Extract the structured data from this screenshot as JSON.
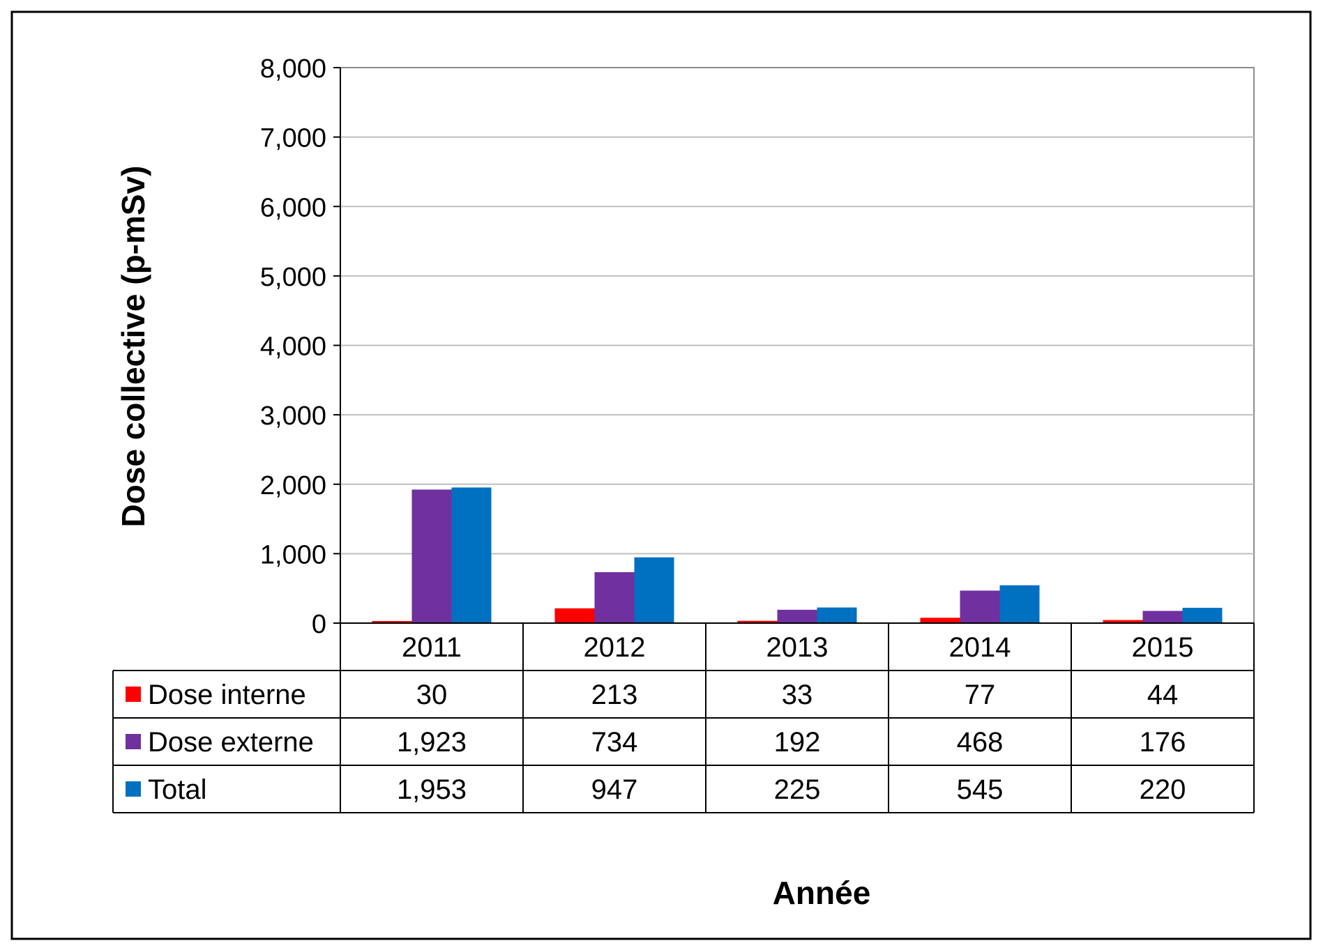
{
  "chart_data": {
    "type": "bar",
    "title": "",
    "xlabel": "Année",
    "ylabel": "Dose collective (p-mSv)",
    "ylim": [
      0,
      8000
    ],
    "yticks": [
      0,
      1000,
      2000,
      3000,
      4000,
      5000,
      6000,
      7000,
      8000
    ],
    "ytick_labels": [
      "0",
      "1,000",
      "2,000",
      "3,000",
      "4,000",
      "5,000",
      "6,000",
      "7,000",
      "8,000"
    ],
    "grid": true,
    "legend": "data-table",
    "categories": [
      "2011",
      "2012",
      "2013",
      "2014",
      "2015"
    ],
    "series": [
      {
        "name": "Dose interne",
        "color": "#ff0000",
        "values": [
          30,
          213,
          33,
          77,
          44
        ],
        "labels": [
          "30",
          "213",
          "33",
          "77",
          "44"
        ]
      },
      {
        "name": "Dose externe",
        "color": "#7030a0",
        "values": [
          1923,
          734,
          192,
          468,
          176
        ],
        "labels": [
          "1,923",
          "734",
          "192",
          "468",
          "176"
        ]
      },
      {
        "name": "Total",
        "color": "#0070c0",
        "values": [
          1953,
          947,
          225,
          545,
          220
        ],
        "labels": [
          "1,953",
          "947",
          "225",
          "545",
          "220"
        ]
      }
    ]
  }
}
